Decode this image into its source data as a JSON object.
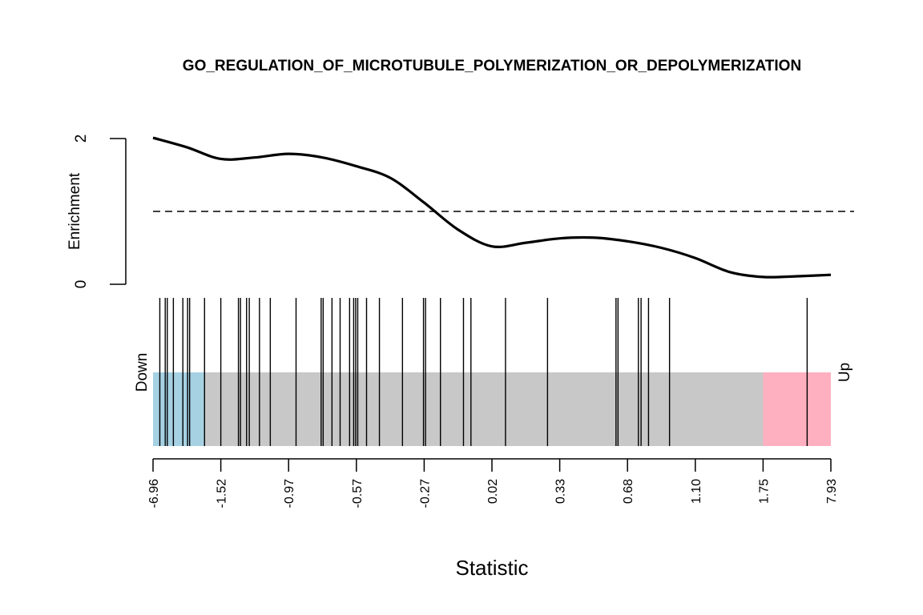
{
  "chart_data": {
    "type": "line",
    "title": "GO_REGULATION_OF_MICROTUBULE_POLYMERIZATION_OR_DEPOLYMERIZATION",
    "xlabel": "Statistic",
    "ylabel": "Enrichment",
    "down_label": "Down",
    "up_label": "Up",
    "x_range": [
      0,
      1
    ],
    "ylim": [
      0,
      2
    ],
    "y_ticks": [
      0,
      2
    ],
    "reference_line": 1,
    "x_tick_labels": [
      "-6.96",
      "-1.52",
      "-0.97",
      "-0.57",
      "-0.27",
      "0.02",
      "0.33",
      "0.68",
      "1.10",
      "1.75",
      "7.93"
    ],
    "enrichment_curve": {
      "x": [
        0.0,
        0.05,
        0.1,
        0.15,
        0.2,
        0.25,
        0.3,
        0.35,
        0.4,
        0.45,
        0.5,
        0.55,
        0.6,
        0.65,
        0.7,
        0.75,
        0.8,
        0.85,
        0.9,
        0.95,
        1.0
      ],
      "y": [
        2.01,
        1.88,
        1.72,
        1.74,
        1.79,
        1.74,
        1.62,
        1.46,
        1.12,
        0.75,
        0.52,
        0.57,
        0.63,
        0.64,
        0.59,
        0.5,
        0.36,
        0.17,
        0.1,
        0.11,
        0.13
      ]
    },
    "barcode_positions": [
      0.01,
      0.018,
      0.021,
      0.03,
      0.044,
      0.051,
      0.054,
      0.076,
      0.1,
      0.126,
      0.129,
      0.138,
      0.142,
      0.157,
      0.173,
      0.211,
      0.248,
      0.251,
      0.264,
      0.276,
      0.29,
      0.296,
      0.299,
      0.302,
      0.315,
      0.334,
      0.368,
      0.399,
      0.402,
      0.424,
      0.458,
      0.469,
      0.52,
      0.582,
      0.683,
      0.686,
      0.716,
      0.72,
      0.731,
      0.762,
      0.965
    ],
    "regions": {
      "down_end": 0.075,
      "up_start": 0.9
    },
    "colors": {
      "curve": "#000000",
      "down_region": "#a6d1e3",
      "middle_region": "#c8c8c8",
      "up_region": "#ffb0c0"
    }
  }
}
